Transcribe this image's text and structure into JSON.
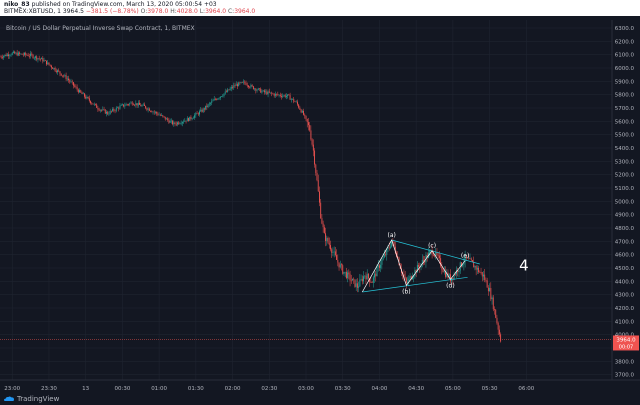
{
  "header": {
    "publisher": "niko_83",
    "published_text": "published on TradingView.com, March 13, 2020 05:00:54 +03",
    "symbol": "BITMEX:XBTUSD, 1",
    "last": "3964.5",
    "change": "−381.5 (−8.78%)",
    "o_label": "O:",
    "o_value": "3978.0",
    "h_label": "H:",
    "h_value": "4028.0",
    "l_label": "L:",
    "l_value": "3964.0",
    "c_label": "C:",
    "c_value": "3964.0"
  },
  "branding": {
    "logo_icon": "tradingview-cloud-icon",
    "text": "TradingView"
  },
  "colors": {
    "background": "#131722",
    "grid": "#1f2430",
    "up": "#26a69a",
    "down": "#ef5350",
    "axis_text": "#b2b5be",
    "price_tag": "#ef5350",
    "pattern": "#26c6da",
    "wave": "#ffffff"
  },
  "chart_data": {
    "type": "candlestick",
    "title": "Bitcoin / US Dollar Perpetual Inverse Swap Contract, 1, BITMEX",
    "grid": true,
    "y_axis": {
      "side": "right",
      "ylim": [
        3660,
        6360
      ],
      "ticks": [
        "6300.0",
        "6200.0",
        "6100.0",
        "6000.0",
        "5900.0",
        "5800.0",
        "5700.0",
        "5600.0",
        "5500.0",
        "5400.0",
        "5300.0",
        "5200.0",
        "5100.0",
        "5000.0",
        "4900.0",
        "4800.0",
        "4700.0",
        "4600.0",
        "4500.0",
        "4400.0",
        "4300.0",
        "4200.0",
        "4100.0",
        "4000.0",
        "3900.0",
        "3800.0",
        "3700.0"
      ]
    },
    "x_axis": {
      "ticks": [
        "23:00",
        "23:30",
        "13",
        "00:30",
        "01:00",
        "01:30",
        "02:00",
        "02:30",
        "03:00",
        "03:30",
        "04:00",
        "04:30",
        "05:00",
        "05:30",
        "06:00"
      ],
      "xlim_minutes": [
        -70,
        430
      ]
    },
    "last_price": {
      "value": 3964.0,
      "label": "3964.0",
      "countdown": "00:07"
    },
    "price_path": [
      [
        -70,
        6085
      ],
      [
        -60,
        6110
      ],
      [
        -45,
        6095
      ],
      [
        -35,
        6060
      ],
      [
        -25,
        5990
      ],
      [
        -15,
        5920
      ],
      [
        -5,
        5820
      ],
      [
        0,
        5780
      ],
      [
        10,
        5700
      ],
      [
        18,
        5660
      ],
      [
        28,
        5710
      ],
      [
        38,
        5740
      ],
      [
        48,
        5710
      ],
      [
        60,
        5650
      ],
      [
        72,
        5580
      ],
      [
        85,
        5620
      ],
      [
        95,
        5680
      ],
      [
        105,
        5760
      ],
      [
        115,
        5820
      ],
      [
        122,
        5870
      ],
      [
        130,
        5890
      ],
      [
        135,
        5860
      ],
      [
        145,
        5820
      ],
      [
        155,
        5800
      ],
      [
        165,
        5790
      ],
      [
        172,
        5740
      ],
      [
        178,
        5650
      ],
      [
        183,
        5540
      ],
      [
        186,
        5380
      ],
      [
        189,
        5150
      ],
      [
        192,
        4900
      ],
      [
        195,
        4740
      ],
      [
        200,
        4660
      ],
      [
        205,
        4560
      ],
      [
        210,
        4480
      ],
      [
        216,
        4420
      ],
      [
        222,
        4360
      ],
      [
        228,
        4450
      ],
      [
        234,
        4400
      ],
      [
        240,
        4520
      ],
      [
        246,
        4620
      ],
      [
        250,
        4700
      ],
      [
        254,
        4610
      ],
      [
        258,
        4480
      ],
      [
        262,
        4380
      ],
      [
        266,
        4440
      ],
      [
        272,
        4510
      ],
      [
        278,
        4580
      ],
      [
        283,
        4630
      ],
      [
        288,
        4570
      ],
      [
        293,
        4470
      ],
      [
        298,
        4420
      ],
      [
        304,
        4490
      ],
      [
        310,
        4570
      ],
      [
        315,
        4540
      ],
      [
        320,
        4490
      ],
      [
        325,
        4440
      ],
      [
        330,
        4330
      ],
      [
        334,
        4180
      ],
      [
        337,
        4050
      ],
      [
        339,
        3964
      ]
    ],
    "annotations": {
      "waves": [
        {
          "label": "(a)",
          "x": 250,
          "y": 4710
        },
        {
          "label": "(b)",
          "x": 262,
          "y": 4370
        },
        {
          "label": "(c)",
          "x": 283,
          "y": 4630
        },
        {
          "label": "(d)",
          "x": 298,
          "y": 4415
        },
        {
          "label": "(e)",
          "x": 310,
          "y": 4555
        }
      ],
      "triangle_upper": [
        [
          250,
          4710
        ],
        [
          322,
          4530
        ]
      ],
      "triangle_lower": [
        [
          226,
          4320
        ],
        [
          312,
          4430
        ]
      ],
      "wave_zigzag": [
        [
          226,
          4320
        ],
        [
          250,
          4710
        ],
        [
          262,
          4370
        ],
        [
          283,
          4630
        ],
        [
          298,
          4415
        ],
        [
          310,
          4555
        ]
      ],
      "count_label": {
        "text": "4",
        "x": 358,
        "y": 4480
      }
    }
  }
}
